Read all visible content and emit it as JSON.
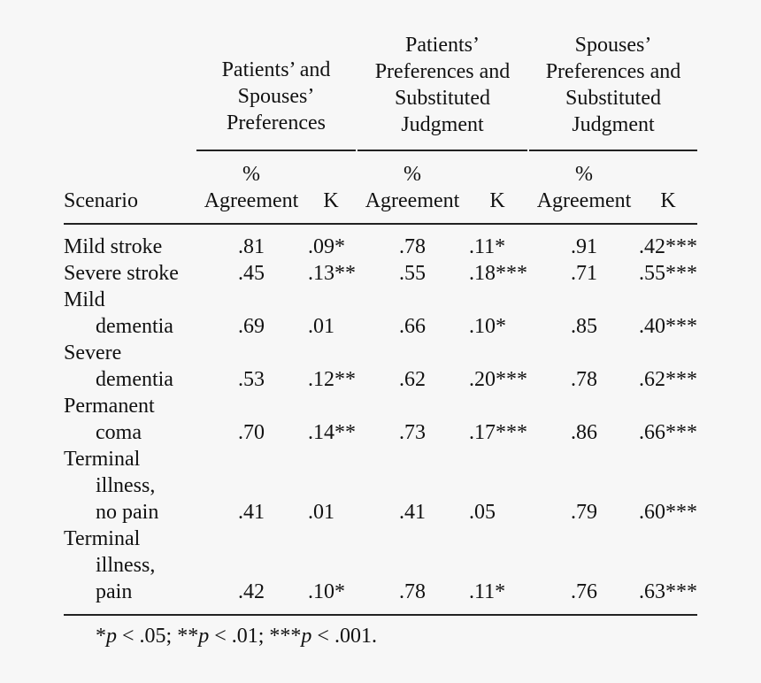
{
  "table": {
    "groups": [
      {
        "lines": [
          "Patients’ and",
          "Spouses’",
          "Preferences"
        ]
      },
      {
        "lines": [
          "Patients’",
          "Preferences and",
          "Substituted",
          "Judgment"
        ]
      },
      {
        "lines": [
          "Spouses’",
          "Preferences and",
          "Substituted",
          "Judgment"
        ]
      }
    ],
    "col_headers": {
      "scenario": "Scenario",
      "pct": "%",
      "agreement": "Agreement",
      "kappa": "K"
    },
    "rows": [
      {
        "lines": [
          "Mild stroke"
        ],
        "values": [
          ".81",
          ".09*",
          ".78",
          ".11*",
          ".91",
          ".42***"
        ]
      },
      {
        "lines": [
          "Severe stroke"
        ],
        "values": [
          ".45",
          ".13**",
          ".55",
          ".18***",
          ".71",
          ".55***"
        ]
      },
      {
        "lines": [
          "Mild",
          "dementia"
        ],
        "values": [
          ".69",
          ".01",
          ".66",
          ".10*",
          ".85",
          ".40***"
        ]
      },
      {
        "lines": [
          "Severe",
          "dementia"
        ],
        "values": [
          ".53",
          ".12**",
          ".62",
          ".20***",
          ".78",
          ".62***"
        ]
      },
      {
        "lines": [
          "Permanent",
          "coma"
        ],
        "values": [
          ".70",
          ".14**",
          ".73",
          ".17***",
          ".86",
          ".66***"
        ]
      },
      {
        "lines": [
          "Terminal",
          "illness,",
          "no pain"
        ],
        "values": [
          ".41",
          ".01",
          ".41",
          ".05",
          ".79",
          ".60***"
        ]
      },
      {
        "lines": [
          "Terminal",
          "illness,",
          "pain"
        ],
        "values": [
          ".42",
          ".10*",
          ".78",
          ".11*",
          ".76",
          ".63***"
        ]
      }
    ],
    "footnote": [
      {
        "stars": "*",
        "p": "p",
        "rest": " < .05; "
      },
      {
        "stars": "**",
        "p": "p",
        "rest": " < .01; "
      },
      {
        "stars": "***",
        "p": "p",
        "rest": " < .001."
      }
    ]
  }
}
